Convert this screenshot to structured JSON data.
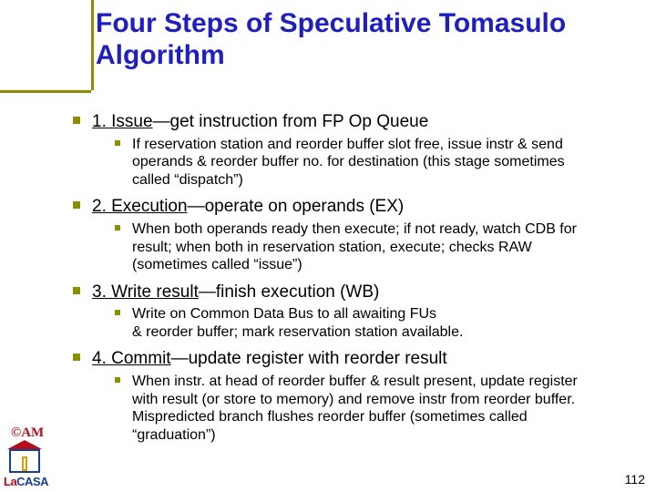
{
  "colors": {
    "title": "#1f1fbf",
    "accent": "#8d8d00",
    "body": "#000000",
    "logo_am": "#b30e1b",
    "logo_roof": "#b30e1b",
    "logo_outer": "#163f98",
    "logo_door": "#d8a100",
    "lacasa_la": "#b30e1b",
    "lacasa_casa": "#163f98",
    "pagenum": "#000000",
    "bg": "#ffffff"
  },
  "typography": {
    "title_size": 30,
    "top_size": 19,
    "sub_size": 16,
    "logo_am_size": 15,
    "lacasa_size": 13,
    "pagenum_size": 14
  },
  "shapes": {
    "bullet_top_size": 8,
    "bullet_sub_size": 6
  },
  "title": "Four Steps of Speculative Tomasulo Algorithm",
  "items": [
    {
      "heading_underlined": "1. Issue",
      "heading_rest": "—get instruction from FP Op Queue",
      "sub": "If reservation station and reorder buffer slot free, issue instr & send operands & reorder buffer no. for destination (this stage sometimes called “dispatch”)"
    },
    {
      "heading_underlined": "2. Execution",
      "heading_rest": "—operate on operands (EX)",
      "sub": "When both operands ready then execute; if not ready, watch CDB for result; when both in reservation station, execute; checks RAW (sometimes called “issue”)"
    },
    {
      "heading_underlined": "3. Write result",
      "heading_rest": "—finish execution (WB)",
      "sub": "Write on Common Data Bus to all awaiting FUs\n& reorder buffer; mark reservation station available."
    },
    {
      "heading_underlined": "4. Commit",
      "heading_rest": "—update register with reorder result",
      "sub": "When instr. at head of reorder buffer & result present, update register with result (or store to memory) and remove instr from reorder buffer. Mispredicted branch flushes reorder buffer (sometimes called “graduation”)"
    }
  ],
  "logo": {
    "am": "©AM",
    "la": "La",
    "casa": "CASA"
  },
  "page_number": "112"
}
